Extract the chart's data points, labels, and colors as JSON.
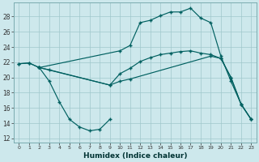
{
  "xlabel": "Humidex (Indice chaleur)",
  "bg_color": "#cde8ec",
  "grid_color": "#a0c8cc",
  "line_color": "#006060",
  "xlim": [
    -0.5,
    23.5
  ],
  "ylim": [
    11.5,
    29.8
  ],
  "xticks": [
    0,
    1,
    2,
    3,
    4,
    5,
    6,
    7,
    8,
    9,
    10,
    11,
    12,
    13,
    14,
    15,
    16,
    17,
    18,
    19,
    20,
    21,
    22,
    23
  ],
  "yticks": [
    12,
    14,
    16,
    18,
    20,
    22,
    24,
    26,
    28
  ],
  "lines": [
    {
      "x": [
        0,
        1,
        2,
        10,
        11,
        12,
        13,
        14,
        15,
        16,
        17,
        18,
        19,
        20,
        21,
        22,
        23
      ],
      "y": [
        21.8,
        21.9,
        21.3,
        23.5,
        24.2,
        27.2,
        27.5,
        28.1,
        28.6,
        28.6,
        29.1,
        27.8,
        27.2,
        22.8,
        19.5,
        16.5,
        14.5
      ]
    },
    {
      "x": [
        0,
        1,
        2,
        9,
        10,
        11,
        12,
        13,
        14,
        15,
        16,
        17,
        18,
        19,
        20,
        21,
        22,
        23
      ],
      "y": [
        21.8,
        21.9,
        21.3,
        19.0,
        20.5,
        21.2,
        22.1,
        22.6,
        23.0,
        23.2,
        23.4,
        23.5,
        23.2,
        23.0,
        22.5,
        20.0,
        16.5,
        14.5
      ]
    },
    {
      "x": [
        2,
        3,
        9,
        10,
        11,
        19,
        20,
        21,
        22,
        23
      ],
      "y": [
        21.3,
        21.0,
        19.0,
        19.5,
        19.8,
        22.8,
        22.5,
        20.0,
        16.5,
        14.5
      ]
    },
    {
      "x": [
        2,
        3,
        4,
        5,
        6,
        7,
        8,
        9
      ],
      "y": [
        21.3,
        19.5,
        16.8,
        14.5,
        13.5,
        13.0,
        13.2,
        14.5
      ]
    }
  ]
}
